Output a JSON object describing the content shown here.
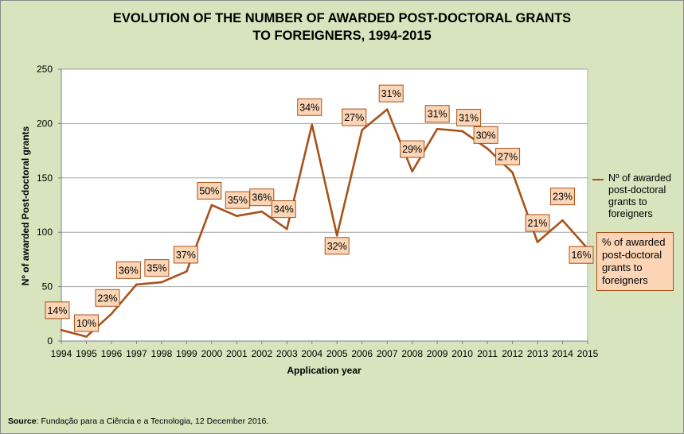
{
  "title_line1": "EVOLUTION OF THE NUMBER OF AWARDED POST-DOCTORAL GRANTS",
  "title_line2": "TO FOREIGNERS, 1994-2015",
  "legend": {
    "series_label": "Nº of awarded post-doctoral grants to foreigners",
    "percent_label": "% of awarded post-doctoral grants to foreigners"
  },
  "source": {
    "prefix": "Source",
    "text": ": Fundação para a Ciência e a Tecnologia, 12 December 2016."
  },
  "colors": {
    "line": "#a8521a",
    "label_fill": "#fbd5b5",
    "plot_bg": "#ffffff",
    "page_bg": "#d7e4bd"
  },
  "chart_data": {
    "type": "line",
    "title": "EVOLUTION OF THE NUMBER OF AWARDED POST-DOCTORAL GRANTS TO FOREIGNERS, 1994-2015",
    "xlabel": "Application year",
    "ylabel": "Nº of awarded Post-doctoral grants",
    "ylim": [
      0,
      250
    ],
    "yticks": [
      0,
      50,
      100,
      150,
      200,
      250
    ],
    "grid": true,
    "legend_position": "right",
    "categories": [
      "1994",
      "1995",
      "1996",
      "1997",
      "1998",
      "1999",
      "2000",
      "2001",
      "2002",
      "2003",
      "2004",
      "2005",
      "2006",
      "2007",
      "2008",
      "2009",
      "2010",
      "2011",
      "2012",
      "2013",
      "2014",
      "2015"
    ],
    "series": [
      {
        "name": "Nº of awarded post-doctoral grants to foreigners",
        "values": [
          10,
          4,
          25,
          52,
          54,
          64,
          125,
          115,
          119,
          103,
          199,
          97,
          194,
          213,
          156,
          195,
          193,
          177,
          155,
          91,
          111,
          85
        ]
      }
    ],
    "data_labels": [
      "14%",
      "10%",
      "23%",
      "36%",
      "35%",
      "37%",
      "50%",
      "35%",
      "36%",
      "34%",
      "34%",
      "32%",
      "27%",
      "31%",
      "29%",
      "31%",
      "31%",
      "30%",
      "27%",
      "21%",
      "23%",
      "16%"
    ]
  }
}
